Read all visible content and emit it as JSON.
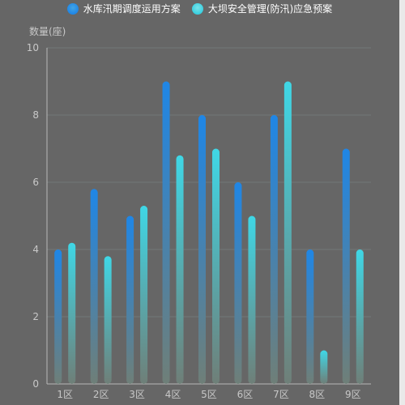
{
  "chart_data": {
    "type": "bar",
    "ylabel": "数量(座)",
    "categories": [
      "1区",
      "2区",
      "3区",
      "4区",
      "5区",
      "6区",
      "7区",
      "8区",
      "9区"
    ],
    "yticks": [
      "0",
      "2",
      "4",
      "6",
      "8",
      "10"
    ],
    "ylim": [
      0,
      10
    ],
    "legend_position": "top-center",
    "grid": true,
    "series": [
      {
        "name": "水库汛期调度运用方案",
        "values": [
          4,
          5.8,
          5,
          9,
          8,
          6,
          8,
          4,
          7
        ],
        "color_top": "#1f86e6",
        "color_bottom": "#6f7f78"
      },
      {
        "name": "大坝安全管理(防汛)应急预案",
        "values": [
          4.2,
          3.8,
          5.3,
          6.8,
          7,
          5,
          9,
          1,
          4
        ],
        "color_top": "#3fd7e6",
        "color_bottom": "#6f7f78"
      }
    ]
  },
  "colors": {
    "background": "#666666",
    "axis": "#b8b8b8",
    "grid": "#727878",
    "text": "#c8c8c8",
    "legend_text": "#ffffff"
  }
}
